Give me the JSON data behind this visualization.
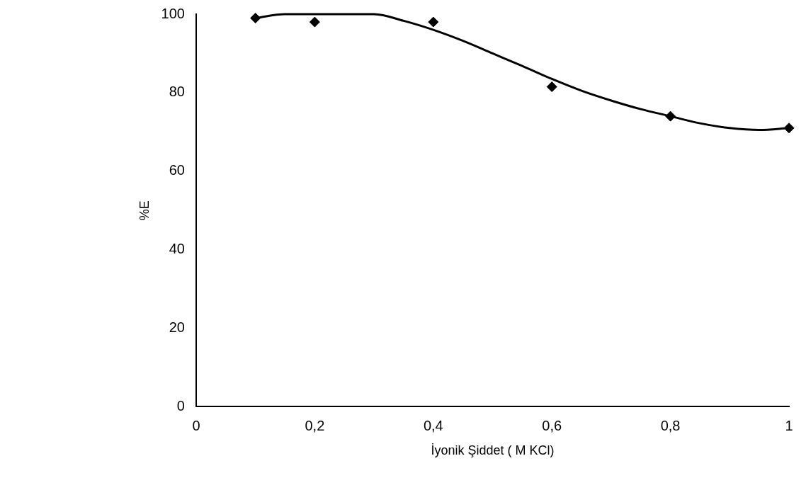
{
  "chart_data": {
    "type": "scatter",
    "xlabel": "İyonik Şiddet ( M KCl)",
    "ylabel": "%E",
    "xlim": [
      0,
      1
    ],
    "ylim": [
      0,
      100
    ],
    "xticks": [
      0,
      {
        "value": 0.2,
        "label": "0,2"
      },
      {
        "value": 0.4,
        "label": "0,4"
      },
      {
        "value": 0.6,
        "label": "0,6"
      },
      {
        "value": 0.8,
        "label": "0,8"
      },
      1
    ],
    "yticks": [
      0,
      20,
      40,
      60,
      80,
      100
    ],
    "grid": false,
    "legend": false,
    "series": [
      {
        "type": "scatter",
        "color": "#000000",
        "marker": "diamond",
        "x": [
          0.1,
          0.2,
          0.4,
          0.6,
          0.8,
          1
        ],
        "values": [
          99,
          98,
          98,
          81.5,
          74,
          71
        ]
      },
      {
        "type": "line",
        "color": "#000000",
        "marker": "none",
        "line_style": "solid",
        "x": [
          0.1,
          0.15,
          0.2,
          0.25,
          0.3,
          0.35,
          0.4,
          0.45,
          0.5,
          0.55,
          0.6,
          0.65,
          0.7,
          0.75,
          0.8,
          0.85,
          0.9,
          0.95,
          1
        ],
        "values": [
          99,
          100,
          100,
          100,
          100,
          98.3,
          96,
          93.2,
          90,
          86.8,
          83.5,
          80.5,
          78,
          75.8,
          74,
          72.2,
          71,
          70.5,
          71
        ]
      }
    ]
  }
}
